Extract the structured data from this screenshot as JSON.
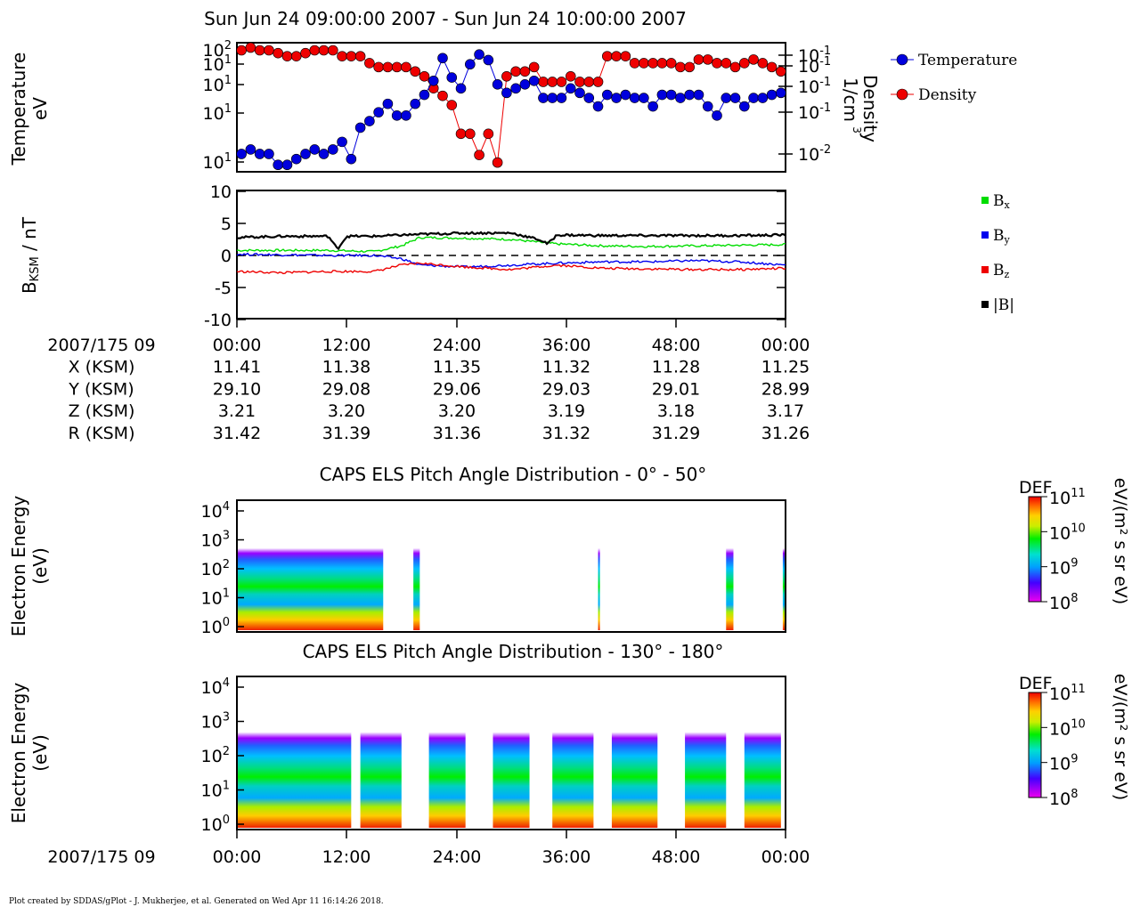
{
  "title": "Sun Jun 24 09:00:00 2007 - Sun Jun 24 10:00:00 2007",
  "credit": "Plot created by SDDAS/gPlot - J. Mukherjee, et al.  Generated on Wed Apr 11 16:14:26 2018.",
  "colors": {
    "temperature": "#0000dd",
    "density": "#ee0000",
    "bx": "#00dd00",
    "by": "#0000ee",
    "bz": "#ee0000",
    "btot": "#000000"
  },
  "panels": {
    "plasma": {
      "ylabel_left_1": "Temperature",
      "ylabel_left_2": "eV",
      "ylabel_right_1": "Density",
      "ylabel_right_2": "1/cm",
      "ylabel_right_sup": "3",
      "left_ticks": [
        {
          "base": "10",
          "exp": "2"
        },
        {
          "base": "10",
          "exp": "1"
        },
        {
          "base": "10",
          "exp": "1"
        },
        {
          "base": "10",
          "exp": "1"
        },
        {
          "base": "10",
          "exp": "1"
        }
      ],
      "right_ticks": [
        {
          "base": "10",
          "exp": "-1"
        },
        {
          "base": "10",
          "exp": "-1"
        },
        {
          "base": "10",
          "exp": "-1"
        },
        {
          "base": "10",
          "exp": "-1"
        },
        {
          "base": "10",
          "exp": "-2"
        }
      ],
      "legend": [
        "Temperature",
        "Density"
      ]
    },
    "mag": {
      "ylabel_main": "B",
      "ylabel_sub": "KSM",
      "ylabel_unit": " / nT",
      "yticks": [
        "10",
        "5",
        "0",
        "-5",
        "-10"
      ],
      "legend": [
        {
          "base": "B",
          "sub": "x"
        },
        {
          "base": "B",
          "sub": "y"
        },
        {
          "base": "B",
          "sub": "z"
        },
        {
          "base": "|B|",
          "sub": ""
        }
      ]
    },
    "els1": {
      "title": "CAPS ELS Pitch Angle Distribution - 0° - 50°",
      "ylabel_1": "Electron Energy",
      "ylabel_2": "(eV)"
    },
    "els2": {
      "title": "CAPS ELS Pitch Angle Distribution - 130° - 180°",
      "ylabel_1": "Electron Energy",
      "ylabel_2": "(eV)"
    },
    "energy_ticks": [
      {
        "base": "10",
        "exp": "4"
      },
      {
        "base": "10",
        "exp": "3"
      },
      {
        "base": "10",
        "exp": "2"
      },
      {
        "base": "10",
        "exp": "1"
      },
      {
        "base": "10",
        "exp": "0"
      }
    ],
    "colorbar": {
      "label": "DEF",
      "unit": "eV/(m² s sr eV)",
      "ticks": [
        {
          "base": "10",
          "exp": "11"
        },
        {
          "base": "10",
          "exp": "10"
        },
        {
          "base": "10",
          "exp": "9"
        },
        {
          "base": "10",
          "exp": "8"
        }
      ]
    }
  },
  "ephemeris": {
    "labels": [
      "2007/175 09",
      "X (KSM)",
      "Y (KSM)",
      "Z (KSM)",
      "R (KSM)"
    ],
    "times": [
      "00:00",
      "12:00",
      "24:00",
      "36:00",
      "48:00",
      "00:00"
    ],
    "rows": [
      [
        "11.41",
        "11.38",
        "11.35",
        "11.32",
        "11.28",
        "11.25"
      ],
      [
        "29.10",
        "29.08",
        "29.06",
        "29.03",
        "29.01",
        "28.99"
      ],
      [
        "3.21",
        "3.20",
        "3.20",
        "3.19",
        "3.18",
        "3.17"
      ],
      [
        "31.42",
        "31.39",
        "31.36",
        "31.32",
        "31.29",
        "31.26"
      ]
    ]
  },
  "bottom_axis": {
    "date_label": "2007/175 09",
    "times": [
      "00:00",
      "12:00",
      "24:00",
      "36:00",
      "48:00",
      "00:00"
    ]
  },
  "chart_data": [
    {
      "type": "scatter",
      "x_unit": "minutes after 09:00",
      "series": [
        {
          "name": "Temperature",
          "x": [
            0.5,
            1.5,
            2.5,
            3.5,
            4.5,
            5.5,
            6.5,
            7.5,
            8.5,
            9.5,
            10.5,
            11.5,
            12.5,
            13.5,
            14.5,
            15.5,
            16.5,
            17.5,
            18.5,
            19.5,
            20.5,
            21.5,
            22.5,
            23.5,
            24.5,
            25.5,
            26.5,
            27.5,
            28.5,
            29.5,
            30.5,
            31.5,
            32.5,
            33.5,
            34.5,
            35.5,
            36.5,
            37.5,
            38.5,
            39.5,
            40.5,
            41.5,
            42.5,
            43.5,
            44.5,
            45.5,
            46.5,
            47.5,
            48.5,
            49.5,
            50.5,
            51.5,
            52.5,
            53.5,
            54.5,
            55.5,
            56.5,
            57.5,
            58.5,
            59.5
          ],
          "y": [
            8,
            9,
            8,
            8,
            6,
            6,
            7,
            8,
            9,
            8,
            9,
            11,
            7,
            16,
            19,
            24,
            30,
            22,
            22,
            30,
            38,
            55,
            100,
            60,
            45,
            85,
            110,
            95,
            50,
            40,
            45,
            50,
            55,
            35,
            35,
            35,
            45,
            40,
            35,
            28,
            38,
            35,
            38,
            35,
            35,
            28,
            38,
            38,
            35,
            38,
            38,
            28,
            22,
            35,
            35,
            28,
            35,
            35,
            38,
            40
          ]
        },
        {
          "name": "Density",
          "y": [
            0.15,
            0.16,
            0.15,
            0.15,
            0.14,
            0.13,
            0.13,
            0.14,
            0.15,
            0.15,
            0.15,
            0.13,
            0.13,
            0.13,
            0.11,
            0.1,
            0.1,
            0.1,
            0.1,
            0.09,
            0.08,
            0.06,
            0.05,
            0.04,
            0.02,
            0.02,
            0.012,
            0.02,
            0.01,
            0.08,
            0.09,
            0.09,
            0.1,
            0.07,
            0.07,
            0.07,
            0.08,
            0.07,
            0.07,
            0.07,
            0.13,
            0.13,
            0.13,
            0.11,
            0.11,
            0.11,
            0.11,
            0.11,
            0.1,
            0.1,
            0.12,
            0.12,
            0.11,
            0.11,
            0.1,
            0.11,
            0.12,
            0.11,
            0.1,
            0.09
          ]
        }
      ],
      "ylabel": "Temperature eV",
      "y2label": "Density 1/cm3",
      "xlim": [
        0,
        60
      ]
    },
    {
      "type": "line",
      "x_unit": "minutes after 09:00",
      "ylim": [
        -10,
        10
      ],
      "series": [
        {
          "name": "Bx",
          "x": [
            0,
            5,
            10,
            15,
            18,
            20,
            25,
            30,
            35,
            40,
            45,
            50,
            55,
            60
          ],
          "y": [
            0.8,
            0.8,
            0.8,
            0.6,
            1.5,
            2.8,
            2.7,
            2.5,
            1.8,
            1.5,
            1.4,
            1.5,
            1.6,
            1.7
          ]
        },
        {
          "name": "By",
          "x": [
            0,
            5,
            10,
            15,
            18,
            20,
            25,
            30,
            35,
            40,
            45,
            50,
            55,
            60
          ],
          "y": [
            0.2,
            0.1,
            0,
            0,
            -0.5,
            -1.5,
            -1.8,
            -1.5,
            -1.2,
            -1,
            -1,
            -0.8,
            -1,
            -1.5
          ]
        },
        {
          "name": "Bz",
          "x": [
            0,
            5,
            10,
            15,
            18,
            20,
            25,
            30,
            35,
            40,
            45,
            50,
            55,
            60
          ],
          "y": [
            -2.5,
            -2.7,
            -2.5,
            -2.5,
            -1.5,
            -1.2,
            -1.8,
            -2.2,
            -1.5,
            -2,
            -2.1,
            -2.2,
            -2.2,
            -2
          ]
        },
        {
          "name": "|B|",
          "x": [
            0,
            5,
            10,
            11,
            12,
            15,
            20,
            25,
            30,
            33,
            34,
            35,
            40,
            45,
            50,
            55,
            60
          ],
          "y": [
            2.8,
            3,
            3,
            1,
            3,
            3,
            3.3,
            3.5,
            3.5,
            2.5,
            1.8,
            3.2,
            3.1,
            3.1,
            3.1,
            3.1,
            3.2
          ]
        }
      ]
    },
    {
      "type": "heatmap",
      "title": "CAPS ELS Pitch Angle Distribution - 0° - 50°",
      "ylim_log": [
        0,
        4
      ],
      "data_intervals_min": [
        [
          0,
          16
        ],
        [
          19.3,
          20
        ],
        [
          39.5,
          39.7
        ],
        [
          53.5,
          54.3
        ],
        [
          59.7,
          60
        ]
      ]
    },
    {
      "type": "heatmap",
      "title": "CAPS ELS Pitch Angle Distribution - 130° - 180°",
      "ylim_log": [
        0,
        4
      ],
      "data_intervals_min": [
        [
          0,
          12.5
        ],
        [
          13.5,
          18
        ],
        [
          21,
          25
        ],
        [
          28,
          32
        ],
        [
          34.5,
          39
        ],
        [
          41,
          46
        ],
        [
          49,
          53.5
        ],
        [
          55.5,
          59.5
        ]
      ]
    }
  ]
}
